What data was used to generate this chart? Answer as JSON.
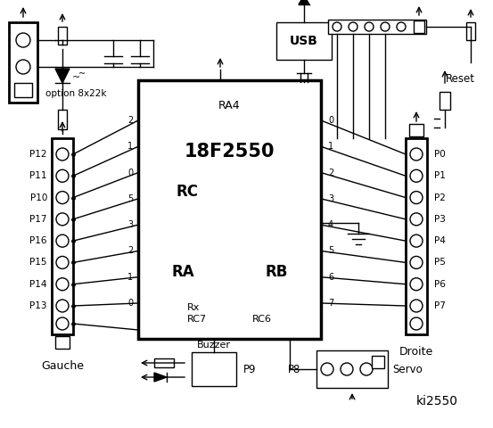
{
  "bg_color": "#ffffff",
  "line_color": "#000000",
  "title": "ki2550",
  "chip_label": "18F2550",
  "chip_sublabel": "RA4",
  "left_connector_label": "Gauche",
  "right_connector_label": "Droite",
  "left_pins": [
    "P12",
    "P11",
    "P10",
    "P17",
    "P16",
    "P15",
    "P14",
    "P13"
  ],
  "right_pins": [
    "P0",
    "P1",
    "P2",
    "P3",
    "P4",
    "P5",
    "P6",
    "P7"
  ],
  "rc_pins": [
    "2",
    "1",
    "0",
    "5",
    "3",
    "2",
    "1",
    "0"
  ],
  "rb_pins": [
    "0",
    "1",
    "2",
    "3",
    "4",
    "5",
    "6",
    "7"
  ],
  "ra_label": "RA",
  "rc_label": "RC",
  "rb_label": "RB",
  "bottom_labels": [
    "Buzzer",
    "P9",
    "P8",
    "Servo"
  ],
  "usb_label": "USB",
  "reset_label": "Reset",
  "option_label": "option 8x22k",
  "rx_label": "Rx",
  "rc7_label": "RC7",
  "rc6_label": "RC6"
}
